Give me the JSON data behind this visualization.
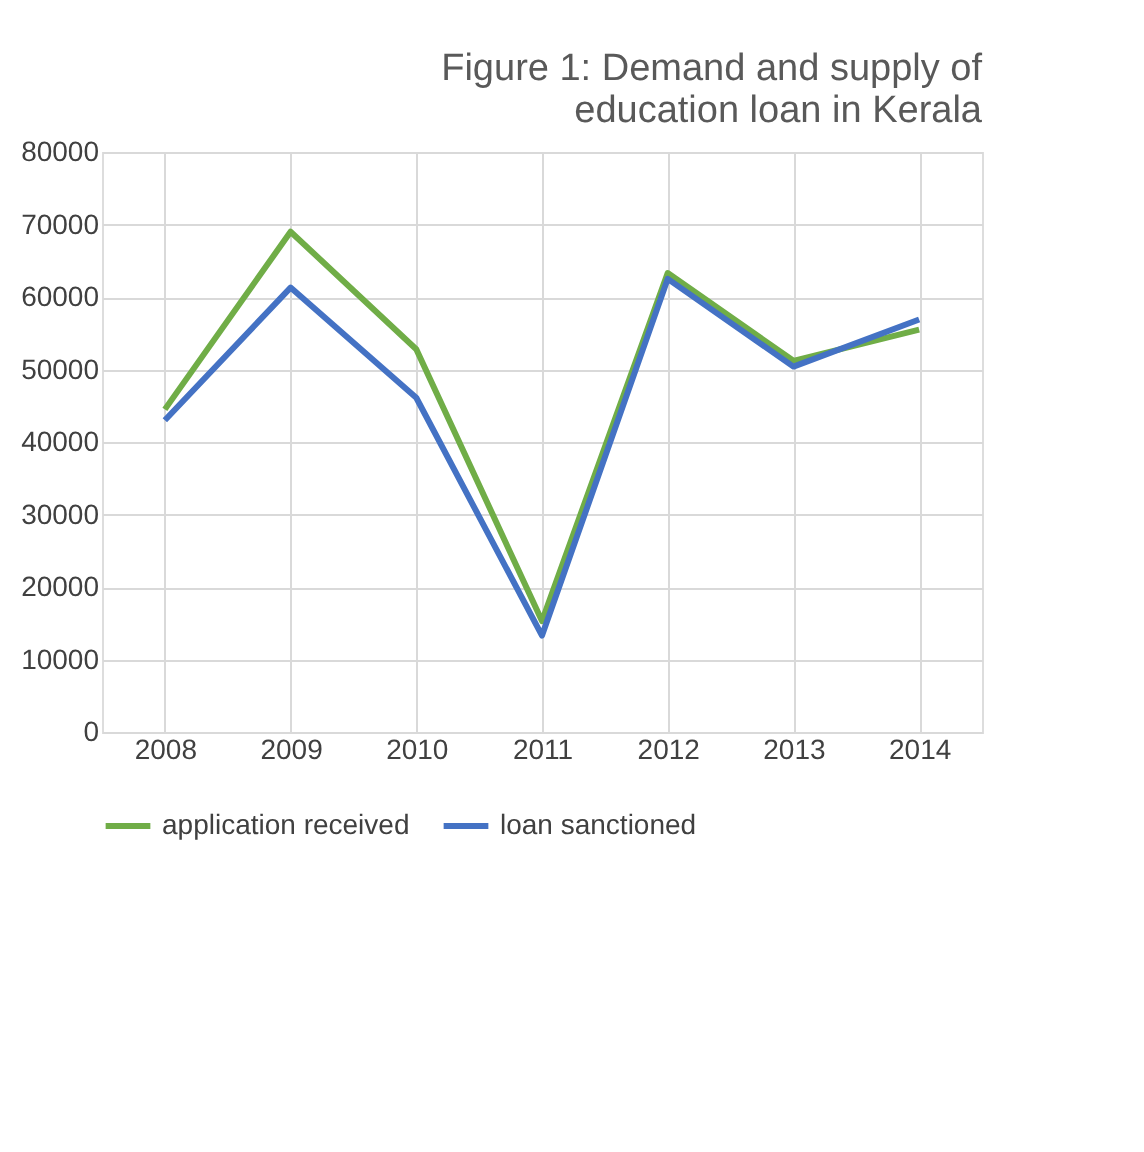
{
  "chart_data": {
    "type": "line",
    "title": [
      "Figure 1: Demand and supply of",
      "education loan in Kerala"
    ],
    "categories": [
      "2008",
      "2009",
      "2010",
      "2011",
      "2012",
      "2013",
      "2014"
    ],
    "series": [
      {
        "name": "application received",
        "color": "#70ad47",
        "values": [
          44500,
          69000,
          52800,
          15300,
          63300,
          51200,
          55500
        ]
      },
      {
        "name": "loan sanctioned",
        "color": "#4472c4",
        "values": [
          43000,
          61300,
          46100,
          13300,
          62500,
          50400,
          56900
        ]
      }
    ],
    "ylim": [
      0,
      80000
    ],
    "yticks": [
      0,
      10000,
      20000,
      30000,
      40000,
      50000,
      60000,
      70000,
      80000
    ],
    "grid": true,
    "legend": "bottom",
    "marker": "none",
    "line_style": "solid"
  }
}
